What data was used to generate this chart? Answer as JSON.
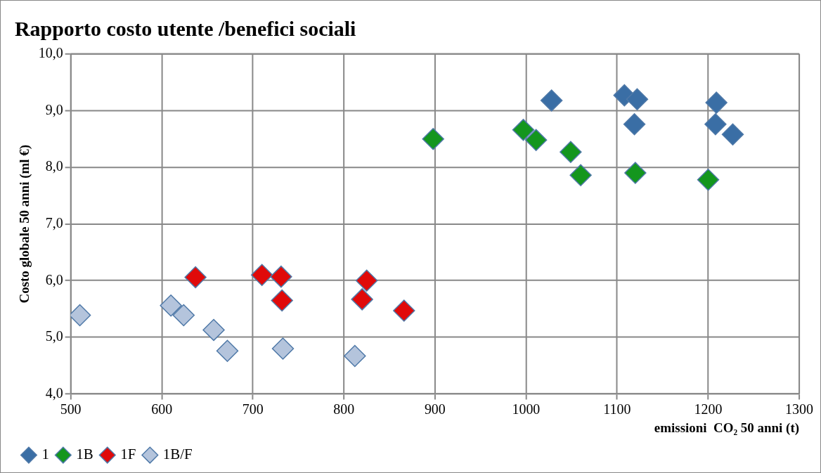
{
  "chart_data": {
    "type": "scatter",
    "title": "Rapporto costo utente /benefici sociali",
    "xlabel": "emissioni  CO₂ 50 anni (t)",
    "ylabel": "Costo globale 50 anni (ml €)",
    "xlim": [
      500,
      1300
    ],
    "xticks": [
      500,
      600,
      700,
      800,
      900,
      1000,
      1100,
      1200,
      1300
    ],
    "ylim": [
      4,
      10
    ],
    "yticks": [
      {
        "value": 4,
        "label": "4,0"
      },
      {
        "value": 5,
        "label": "5,0"
      },
      {
        "value": 6,
        "label": "6,0"
      },
      {
        "value": 7,
        "label": "7,0"
      },
      {
        "value": 8,
        "label": "8,0"
      },
      {
        "value": 9,
        "label": "9,0"
      },
      {
        "value": 10,
        "label": "10,0"
      }
    ],
    "grid": true,
    "legend": "bottom left",
    "marker": "diamond",
    "series": [
      {
        "name": "1",
        "color": "#3a6ea5",
        "x": [
          1028,
          1108,
          1122,
          1119,
          1209,
          1208,
          1227
        ],
        "values": [
          9.18,
          9.27,
          9.2,
          8.76,
          9.14,
          8.76,
          8.58
        ]
      },
      {
        "name": "1B",
        "color": "#14961e",
        "x": [
          898,
          997,
          1011,
          1049,
          1060,
          1120,
          1200
        ],
        "values": [
          8.5,
          8.66,
          8.48,
          8.27,
          7.86,
          7.9,
          7.78
        ]
      },
      {
        "name": "1F",
        "color": "#e00a0a",
        "x": [
          637,
          710,
          731,
          732,
          825,
          820,
          866
        ],
        "values": [
          6.06,
          6.1,
          6.07,
          5.65,
          6.0,
          5.67,
          5.47
        ]
      },
      {
        "name": "1B/F",
        "color": "#b4c4dc",
        "x": [
          510,
          610,
          624,
          657,
          672,
          733,
          812
        ],
        "values": [
          5.39,
          5.56,
          5.39,
          5.13,
          4.76,
          4.8,
          4.67
        ]
      }
    ]
  }
}
